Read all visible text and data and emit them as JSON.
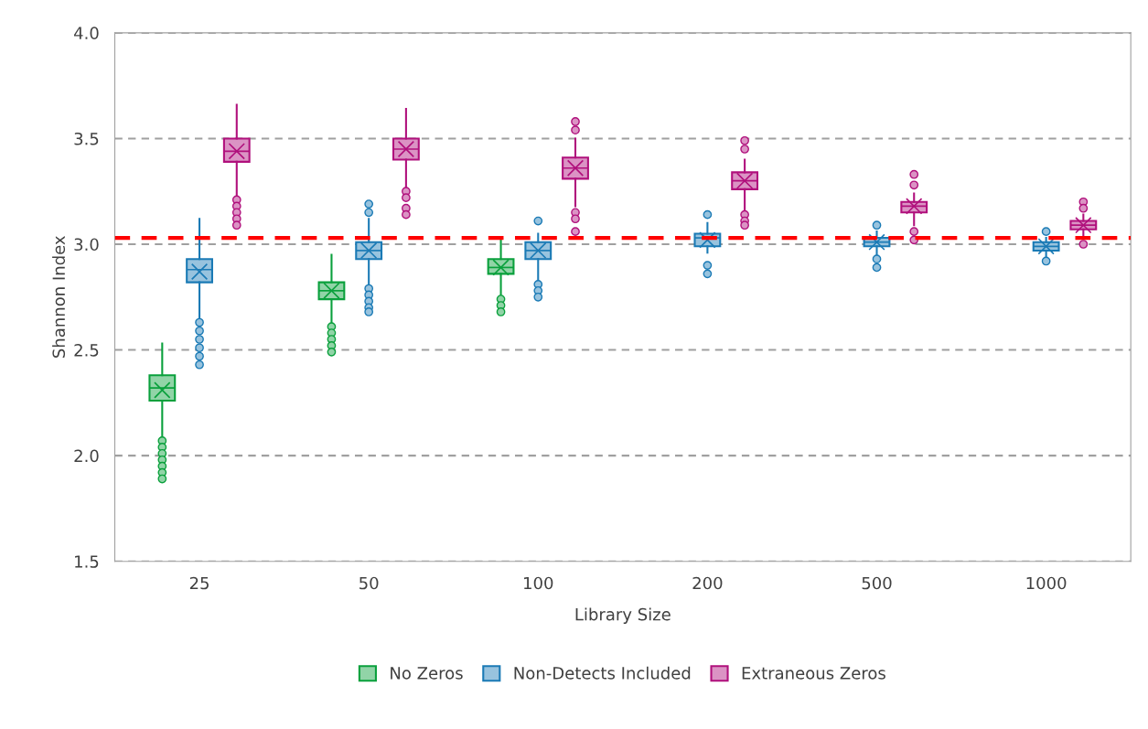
{
  "chart_data": {
    "type": "box",
    "xlabel": "Library Size",
    "ylabel": "Shannon Index",
    "categories": [
      "25",
      "50",
      "100",
      "200",
      "500",
      "1000"
    ],
    "ylim": [
      1.5,
      4.0
    ],
    "yticks": [
      1.5,
      {
        "value": 2,
        "label": "2.0"
      },
      2.5,
      {
        "value": 3,
        "label": "3.0"
      },
      3.5,
      {
        "value": 4,
        "label": "4.0"
      }
    ],
    "grid": "y",
    "legend": "bottom",
    "ref_lines": [
      {
        "axis": "y",
        "value": 3.03,
        "color": "#ff0000",
        "line_style": "dashed"
      }
    ],
    "series": [
      {
        "name": "No Zeros",
        "color": "#0aa03c",
        "boxes": [
          {
            "low": 2.09,
            "q1": 2.26,
            "median": 2.32,
            "q3": 2.38,
            "high": 2.53,
            "mean": 2.31,
            "outliers": [
              2.07,
              2.04,
              2.01,
              1.98,
              1.95,
              1.92,
              1.89
            ]
          },
          {
            "low": 2.63,
            "q1": 2.74,
            "median": 2.78,
            "q3": 2.82,
            "high": 2.95,
            "mean": 2.78,
            "outliers": [
              2.61,
              2.58,
              2.55,
              2.52,
              2.49
            ]
          },
          {
            "low": 2.76,
            "q1": 2.86,
            "median": 2.89,
            "q3": 2.93,
            "high": 3.03,
            "mean": 2.89,
            "outliers": [
              2.74,
              2.71,
              2.68
            ]
          },
          null,
          null,
          null
        ]
      },
      {
        "name": "Non-Detects Included",
        "color": "#1a7ab5",
        "boxes": [
          {
            "low": 2.64,
            "q1": 2.82,
            "median": 2.88,
            "q3": 2.93,
            "high": 3.12,
            "mean": 2.87,
            "outliers": [
              2.63,
              2.59,
              2.55,
              2.51,
              2.47,
              2.43
            ]
          },
          {
            "low": 2.81,
            "q1": 2.93,
            "median": 2.97,
            "q3": 3.01,
            "high": 3.12,
            "mean": 2.97,
            "outliers": [
              3.15,
              3.19,
              2.79,
              2.76,
              2.73,
              2.7,
              2.68
            ]
          },
          {
            "low": 2.83,
            "q1": 2.93,
            "median": 2.97,
            "q3": 3.01,
            "high": 3.05,
            "mean": 2.97,
            "outliers": [
              3.11,
              2.81,
              2.78,
              2.75
            ]
          },
          {
            "low": 2.96,
            "q1": 2.99,
            "median": 3.03,
            "q3": 3.05,
            "high": 3.1,
            "mean": 3.02,
            "outliers": [
              3.14,
              2.9,
              2.86
            ]
          },
          {
            "low": 2.95,
            "q1": 2.99,
            "median": 3.01,
            "q3": 3.03,
            "high": 3.06,
            "mean": 3.01,
            "outliers": [
              3.09,
              2.93,
              2.89
            ]
          },
          {
            "low": 2.94,
            "q1": 2.97,
            "median": 2.99,
            "q3": 3.01,
            "high": 3.03,
            "mean": 2.99,
            "outliers": [
              3.06,
              2.92
            ]
          }
        ]
      },
      {
        "name": "Extraneous Zeros",
        "color": "#b0107c",
        "boxes": [
          {
            "low": 3.23,
            "q1": 3.39,
            "median": 3.44,
            "q3": 3.5,
            "high": 3.66,
            "mean": 3.44,
            "outliers": [
              3.21,
              3.18,
              3.15,
              3.12,
              3.09
            ]
          },
          {
            "low": 3.26,
            "q1": 3.4,
            "median": 3.45,
            "q3": 3.5,
            "high": 3.64,
            "mean": 3.45,
            "outliers": [
              3.25,
              3.22,
              3.17,
              3.14
            ]
          },
          {
            "low": 3.18,
            "q1": 3.31,
            "median": 3.36,
            "q3": 3.41,
            "high": 3.5,
            "mean": 3.36,
            "outliers": [
              3.58,
              3.54,
              3.15,
              3.12,
              3.06
            ]
          },
          {
            "low": 3.16,
            "q1": 3.26,
            "median": 3.3,
            "q3": 3.34,
            "high": 3.4,
            "mean": 3.3,
            "outliers": [
              3.49,
              3.45,
              3.14,
              3.11,
              3.09
            ]
          },
          {
            "low": 3.09,
            "q1": 3.15,
            "median": 3.18,
            "q3": 3.2,
            "high": 3.24,
            "mean": 3.18,
            "outliers": [
              3.33,
              3.28,
              3.06,
              3.02
            ]
          },
          {
            "low": 3.04,
            "q1": 3.07,
            "median": 3.09,
            "q3": 3.11,
            "high": 3.14,
            "mean": 3.09,
            "outliers": [
              3.2,
              3.17,
              3.0
            ]
          }
        ]
      }
    ]
  }
}
